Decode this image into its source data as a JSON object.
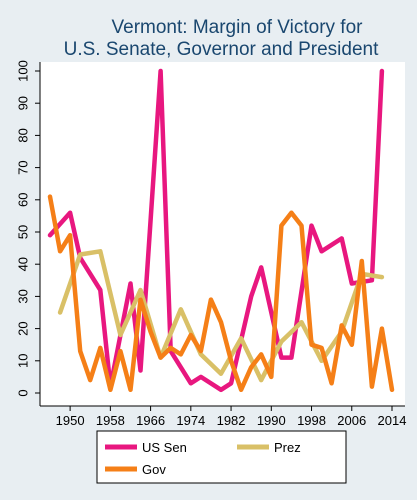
{
  "chart_data": {
    "type": "line",
    "title": [
      "Vermont: Margin of Victory for",
      "U.S. Senate, Governor and President"
    ],
    "xlabel": "",
    "ylabel": "",
    "xlim": [
      1946,
      2014
    ],
    "ylim": [
      0,
      100
    ],
    "x_ticks": [
      1950,
      1958,
      1966,
      1974,
      1982,
      1990,
      1998,
      2006,
      2014
    ],
    "y_ticks": [
      0,
      10,
      20,
      30,
      40,
      50,
      60,
      70,
      80,
      90,
      100
    ],
    "grid": false,
    "legend_position": "bottom",
    "series": [
      {
        "name": "US Sen",
        "color": "#e8177f",
        "points": [
          [
            1946,
            49
          ],
          [
            1950,
            56
          ],
          [
            1952,
            42
          ],
          [
            1956,
            32
          ],
          [
            1958,
            2
          ],
          [
            1962,
            34
          ],
          [
            1964,
            7
          ],
          [
            1968,
            100
          ],
          [
            1970,
            13
          ],
          [
            1974,
            3
          ],
          [
            1976,
            5
          ],
          [
            1980,
            1
          ],
          [
            1982,
            3
          ],
          [
            1986,
            30
          ],
          [
            1988,
            39
          ],
          [
            1992,
            11
          ],
          [
            1994,
            11
          ],
          [
            1998,
            52
          ],
          [
            2000,
            44
          ],
          [
            2004,
            48
          ],
          [
            2006,
            34
          ],
          [
            2010,
            35
          ],
          [
            2012,
            100
          ]
        ]
      },
      {
        "name": "Prez",
        "color": "#d9c067",
        "points": [
          [
            1948,
            25
          ],
          [
            1952,
            43
          ],
          [
            1956,
            44
          ],
          [
            1960,
            18
          ],
          [
            1964,
            32
          ],
          [
            1968,
            11
          ],
          [
            1972,
            26
          ],
          [
            1976,
            12
          ],
          [
            1980,
            6
          ],
          [
            1984,
            17
          ],
          [
            1988,
            4
          ],
          [
            1992,
            16
          ],
          [
            1996,
            22
          ],
          [
            2000,
            10
          ],
          [
            2004,
            19
          ],
          [
            2008,
            37
          ],
          [
            2012,
            36
          ]
        ]
      },
      {
        "name": "Gov",
        "color": "#f57f17",
        "points": [
          [
            1946,
            61
          ],
          [
            1948,
            44
          ],
          [
            1950,
            49
          ],
          [
            1952,
            13
          ],
          [
            1954,
            4
          ],
          [
            1956,
            14
          ],
          [
            1958,
            1
          ],
          [
            1960,
            13
          ],
          [
            1962,
            1
          ],
          [
            1964,
            29
          ],
          [
            1966,
            19
          ],
          [
            1968,
            11
          ],
          [
            1970,
            14
          ],
          [
            1972,
            12
          ],
          [
            1974,
            18
          ],
          [
            1976,
            13
          ],
          [
            1978,
            29
          ],
          [
            1980,
            22
          ],
          [
            1982,
            10
          ],
          [
            1984,
            1
          ],
          [
            1986,
            8
          ],
          [
            1988,
            12
          ],
          [
            1990,
            5
          ],
          [
            1992,
            52
          ],
          [
            1994,
            56
          ],
          [
            1996,
            52
          ],
          [
            1998,
            15
          ],
          [
            2000,
            14
          ],
          [
            2002,
            3
          ],
          [
            2004,
            21
          ],
          [
            2006,
            15
          ],
          [
            2008,
            41
          ],
          [
            2010,
            2
          ],
          [
            2012,
            20
          ],
          [
            2014,
            1
          ]
        ]
      }
    ]
  }
}
